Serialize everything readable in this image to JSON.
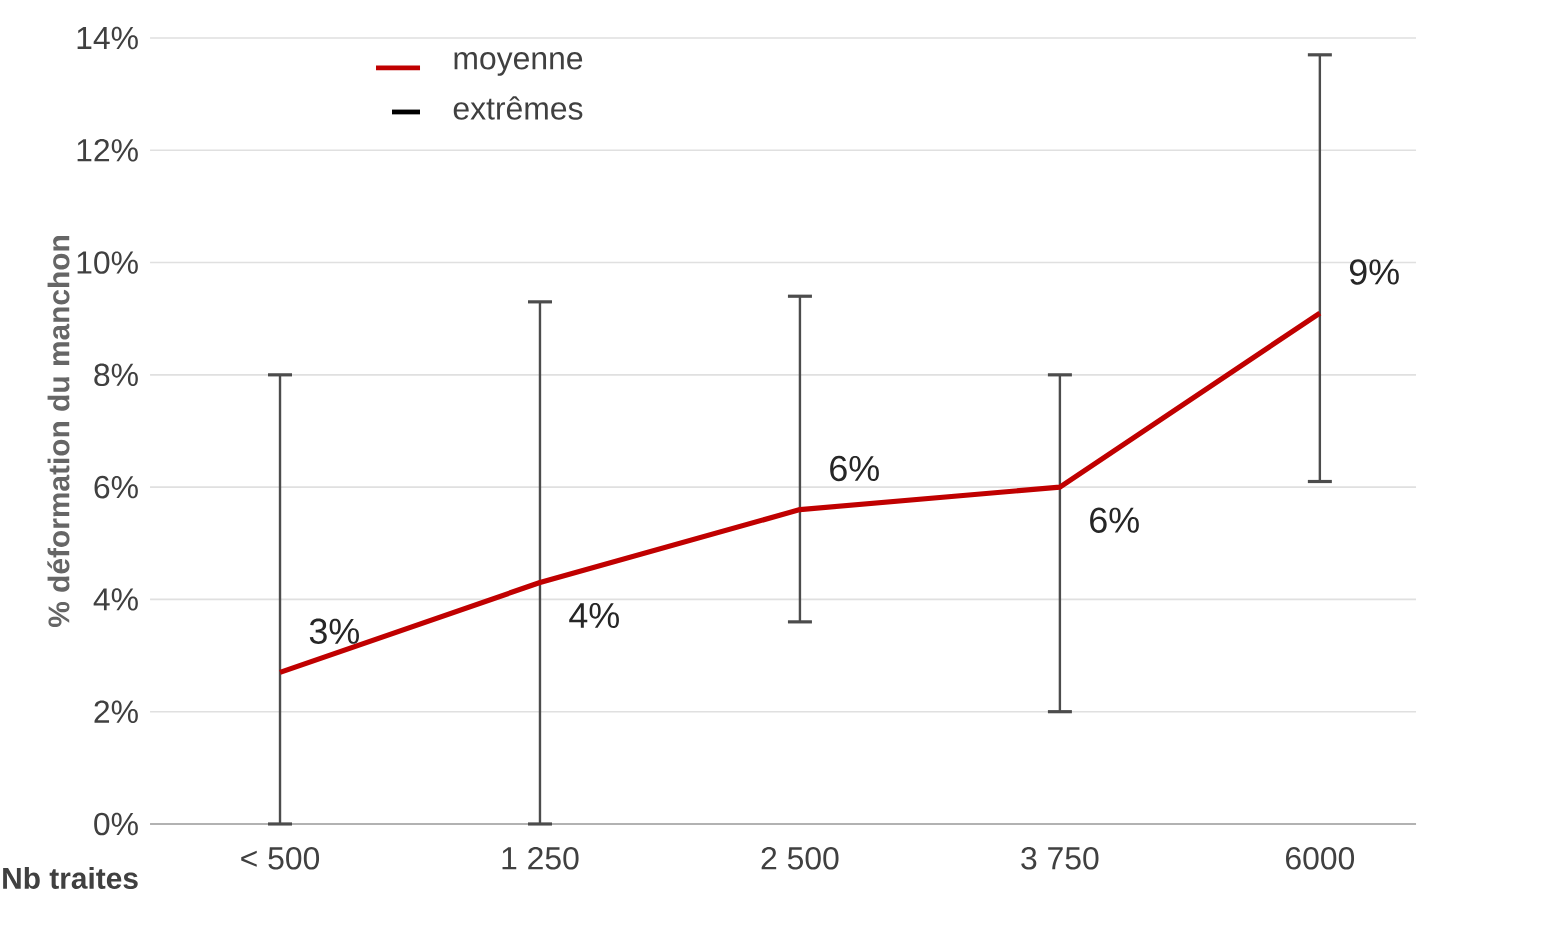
{
  "chart_data": {
    "type": "line",
    "xlabel": "Nb traites",
    "ylabel": "% déformation du manchon",
    "categories": [
      "< 500",
      "1 250",
      "2 500",
      "3 750",
      "6000"
    ],
    "series": [
      {
        "name": "moyenne",
        "color": "#c00000",
        "values": [
          2.7,
          4.3,
          5.6,
          6.0,
          9.1
        ],
        "value_labels": [
          "3%",
          "4%",
          "6%",
          "6%",
          "9%"
        ],
        "errors": [
          [
            0,
            8.0
          ],
          [
            0,
            9.3
          ],
          [
            3.6,
            9.4
          ],
          [
            2.0,
            8.0
          ],
          [
            6.1,
            13.7
          ]
        ]
      }
    ],
    "annotations": [
      "extrêmes"
    ],
    "ylim": [
      0,
      14
    ],
    "yticks": [
      {
        "value": 0,
        "label": "0%"
      },
      {
        "value": 2,
        "label": "2%"
      },
      {
        "value": 4,
        "label": "4%"
      },
      {
        "value": 6,
        "label": "6%"
      },
      {
        "value": 8,
        "label": "8%"
      },
      {
        "value": 10,
        "label": "10%"
      },
      {
        "value": 12,
        "label": "12%"
      },
      {
        "value": 14,
        "label": "14%"
      }
    ],
    "grid": "y",
    "legend": "top left",
    "marker": "none",
    "line_style": "solid"
  }
}
